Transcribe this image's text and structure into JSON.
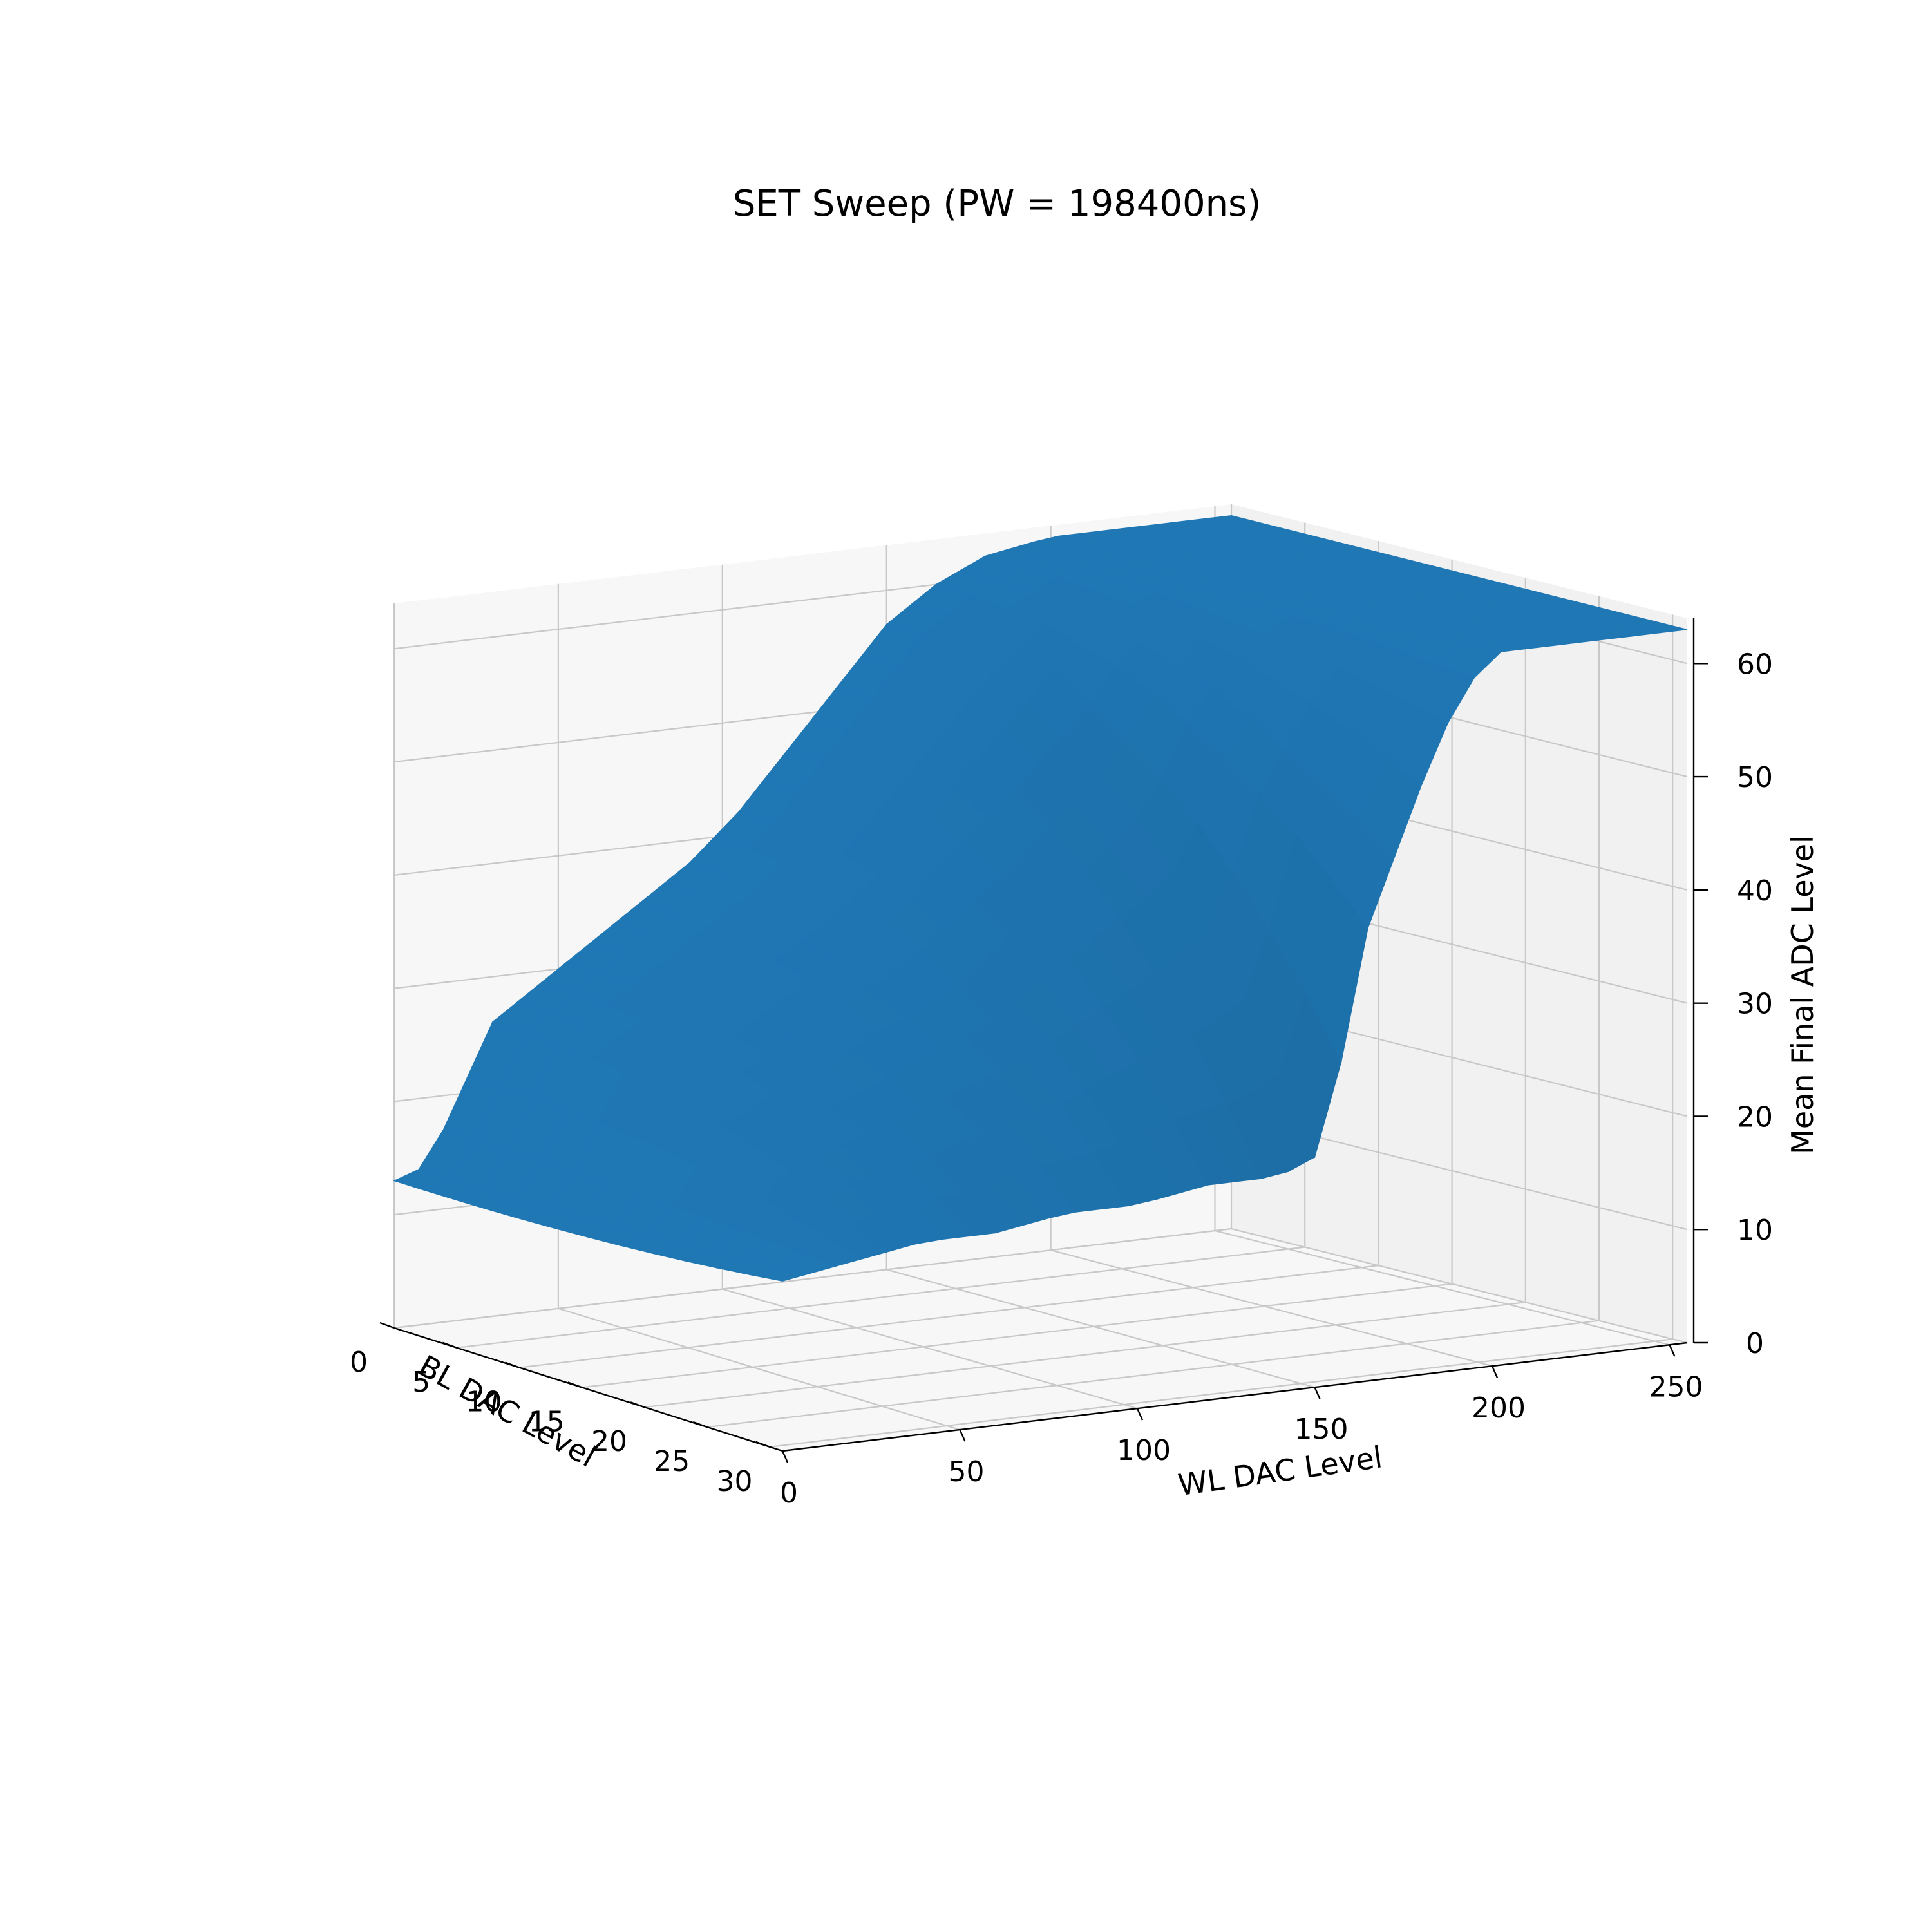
{
  "chart_data": {
    "type": "surface",
    "title": "SET Sweep (PW = 198400ns)",
    "xlabel": "WL DAC Level",
    "ylabel": "BL DAC Level",
    "zlabel": "Mean Final ADC Level",
    "x_ticks": [
      0,
      50,
      100,
      150,
      200,
      250
    ],
    "y_ticks": [
      0,
      5,
      10,
      15,
      20,
      25,
      30
    ],
    "z_ticks": [
      0,
      10,
      20,
      30,
      40,
      50,
      60
    ],
    "xlim": [
      0,
      255
    ],
    "ylim": [
      0,
      31
    ],
    "zlim": [
      0,
      64
    ],
    "grid": true,
    "surface_color": "#1f77b4",
    "front_edge_bl31": [
      {
        "wl": 0,
        "adc": 15
      },
      {
        "wl": 20,
        "adc": 16
      },
      {
        "wl": 40,
        "adc": 17
      },
      {
        "wl": 60,
        "adc": 17
      },
      {
        "wl": 80,
        "adc": 18
      },
      {
        "wl": 100,
        "adc": 18
      },
      {
        "wl": 120,
        "adc": 19
      },
      {
        "wl": 140,
        "adc": 19
      },
      {
        "wl": 155,
        "adc": 21
      },
      {
        "wl": 160,
        "adc": 36
      },
      {
        "wl": 170,
        "adc": 44
      },
      {
        "wl": 180,
        "adc": 52
      },
      {
        "wl": 190,
        "adc": 59
      },
      {
        "wl": 200,
        "adc": 63
      },
      {
        "wl": 255,
        "adc": 63
      }
    ],
    "back_edge_bl0": [
      {
        "wl": 0,
        "adc": 13
      },
      {
        "wl": 10,
        "adc": 14
      },
      {
        "wl": 20,
        "adc": 20
      },
      {
        "wl": 30,
        "adc": 26
      },
      {
        "wl": 45,
        "adc": 29
      },
      {
        "wl": 60,
        "adc": 32
      },
      {
        "wl": 75,
        "adc": 35
      },
      {
        "wl": 90,
        "adc": 38
      },
      {
        "wl": 105,
        "adc": 42
      },
      {
        "wl": 120,
        "adc": 47
      },
      {
        "wl": 135,
        "adc": 52
      },
      {
        "wl": 150,
        "adc": 57
      },
      {
        "wl": 165,
        "adc": 60
      },
      {
        "wl": 180,
        "adc": 62
      },
      {
        "wl": 200,
        "adc": 63
      },
      {
        "wl": 255,
        "adc": 63
      }
    ]
  }
}
